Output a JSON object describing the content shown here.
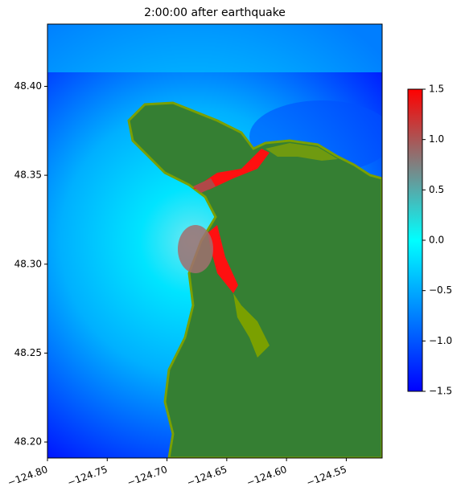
{
  "chart_data": {
    "type": "map",
    "title": "2:00:00 after earthquake",
    "xlim": [
      -124.8,
      -124.52
    ],
    "xticks": [
      {
        "value": -124.8,
        "label": "−124.80"
      },
      {
        "value": -124.75,
        "label": "−124.75"
      },
      {
        "value": -124.7,
        "label": "−124.70"
      },
      {
        "value": -124.65,
        "label": "−124.65"
      },
      {
        "value": -124.6,
        "label": "−124.60"
      },
      {
        "value": -124.55,
        "label": "−124.55"
      }
    ],
    "ylim": [
      48.191,
      48.435
    ],
    "yticks": [
      {
        "value": 48.2,
        "label": "48.20"
      },
      48.25,
      {
        "value": 48.3,
        "label": "48.30"
      },
      48.35,
      {
        "value": 48.4,
        "label": "48.40"
      }
    ],
    "colorbar": {
      "lim": [
        -1.5,
        1.5
      ],
      "ticks": [
        {
          "value": -1.5,
          "label": "−1.5"
        },
        {
          "value": -1,
          "label": "−1.0"
        },
        {
          "value": -0.5,
          "label": "−0.5"
        },
        {
          "value": 0,
          "label": "0.0"
        },
        0.5,
        {
          "value": 1,
          "label": "1.0"
        },
        1.5
      ],
      "colors": [
        "#0000ff",
        "#0080ff",
        "#00ffff",
        "#808080",
        "#ff0000"
      ]
    }
  }
}
